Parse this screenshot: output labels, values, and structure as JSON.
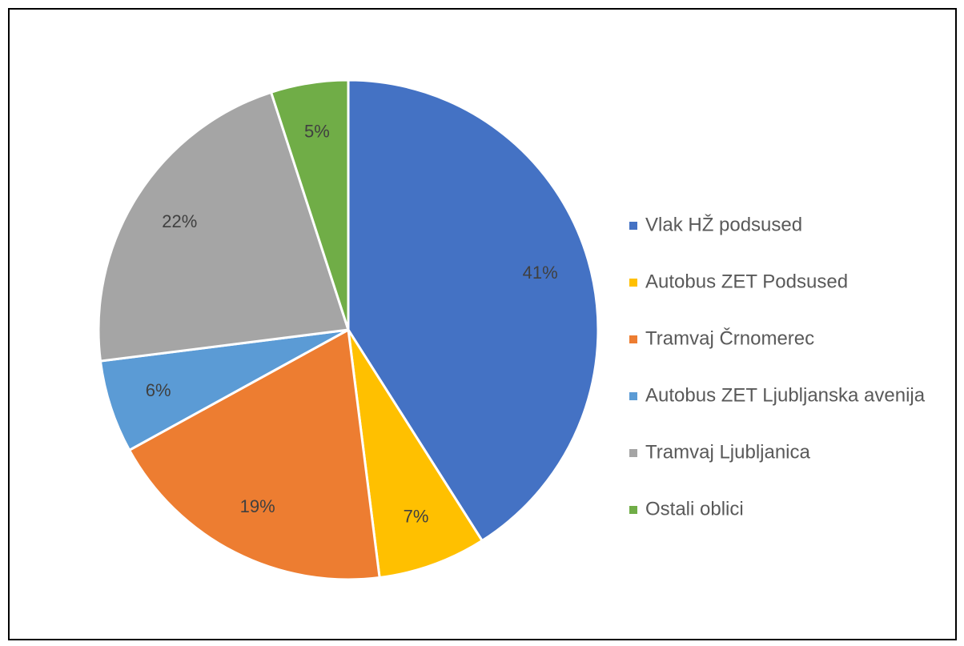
{
  "chart_data": {
    "type": "pie",
    "categories": [
      "Vlak HŽ podsused",
      "Autobus ZET Podsused",
      "Tramvaj Črnomerec",
      "Autobus ZET Ljubljanska avenija",
      "Tramvaj Ljubljanica",
      "Ostali oblici"
    ],
    "values": [
      41,
      7,
      19,
      6,
      22,
      5
    ],
    "value_labels": [
      "41%",
      "7%",
      "19%",
      "6%",
      "22%",
      "5%"
    ],
    "colors": [
      "#4472c4",
      "#ffc000",
      "#ed7d31",
      "#5b9bd5",
      "#a5a5a5",
      "#70ad47"
    ],
    "legend": "right"
  }
}
